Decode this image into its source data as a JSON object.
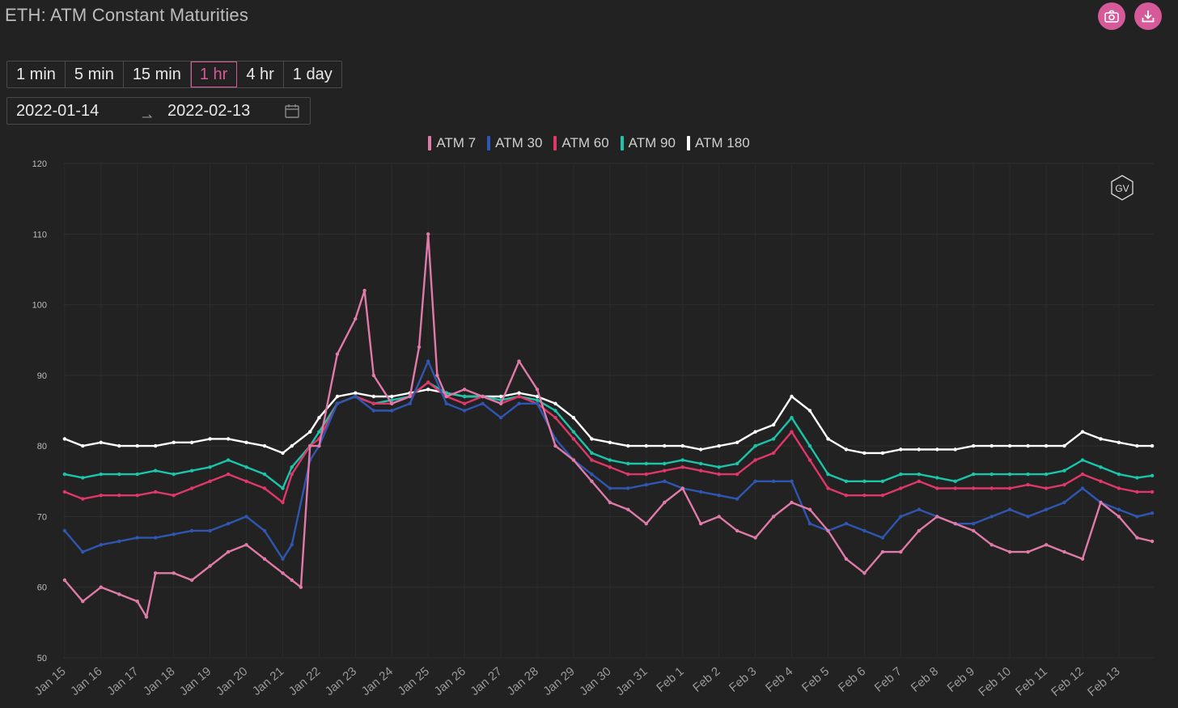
{
  "header": {
    "title": "ETH: ATM Constant Maturities",
    "buttons": [
      {
        "name": "screenshot",
        "icon": "camera-icon"
      },
      {
        "name": "download",
        "icon": "download-icon"
      }
    ],
    "accent": "#d65a9a"
  },
  "controls": {
    "timeframes": [
      "1 min",
      "5 min",
      "15 min",
      "1 hr",
      "4 hr",
      "1 day"
    ],
    "active_timeframe": "1 hr",
    "date_start": "2022-01-14",
    "date_end": "2022-02-13",
    "calendar_icon": "calendar-icon"
  },
  "watermark": "GV",
  "chart_data": {
    "type": "line",
    "title": "",
    "xlabel": "",
    "ylabel": "",
    "ylim": [
      50,
      120
    ],
    "yticks": [
      50,
      60,
      70,
      80,
      90,
      100,
      110,
      120
    ],
    "xlim": [
      "2022-01-14T23:00",
      "2022-02-13T23:00"
    ],
    "xtick_labels": [
      "Jan 15",
      "Jan 16",
      "Jan 17",
      "Jan 18",
      "Jan 19",
      "Jan 20",
      "Jan 21",
      "Jan 22",
      "Jan 23",
      "Jan 24",
      "Jan 25",
      "Jan 26",
      "Jan 27",
      "Jan 28",
      "Jan 29",
      "Jan 30",
      "Jan 31",
      "Feb 1",
      "Feb 2",
      "Feb 3",
      "Feb 4",
      "Feb 5",
      "Feb 6",
      "Feb 7",
      "Feb 8",
      "Feb 9",
      "Feb 10",
      "Feb 11",
      "Feb 12",
      "Feb 13"
    ],
    "grid": true,
    "legend_position": "top-center",
    "series": [
      {
        "name": "ATM 7",
        "color": "#e07aa8",
        "x": [
          "2022-01-15T00:00",
          "2022-01-15T12:00",
          "2022-01-16T00:00",
          "2022-01-16T12:00",
          "2022-01-17T00:00",
          "2022-01-17T06:00",
          "2022-01-17T12:00",
          "2022-01-18T00:00",
          "2022-01-18T12:00",
          "2022-01-19T00:00",
          "2022-01-19T12:00",
          "2022-01-20T00:00",
          "2022-01-20T12:00",
          "2022-01-21T00:00",
          "2022-01-21T06:00",
          "2022-01-21T12:00",
          "2022-01-21T18:00",
          "2022-01-22T00:00",
          "2022-01-22T12:00",
          "2022-01-23T00:00",
          "2022-01-23T06:00",
          "2022-01-23T12:00",
          "2022-01-24T00:00",
          "2022-01-24T12:00",
          "2022-01-24T18:00",
          "2022-01-25T00:00",
          "2022-01-25T06:00",
          "2022-01-25T12:00",
          "2022-01-26T00:00",
          "2022-01-26T12:00",
          "2022-01-27T00:00",
          "2022-01-27T12:00",
          "2022-01-28T00:00",
          "2022-01-28T12:00",
          "2022-01-29T00:00",
          "2022-01-29T12:00",
          "2022-01-30T00:00",
          "2022-01-30T12:00",
          "2022-01-31T00:00",
          "2022-01-31T12:00",
          "2022-02-01T00:00",
          "2022-02-01T12:00",
          "2022-02-02T00:00",
          "2022-02-02T12:00",
          "2022-02-03T00:00",
          "2022-02-03T12:00",
          "2022-02-04T00:00",
          "2022-02-04T12:00",
          "2022-02-05T00:00",
          "2022-02-05T12:00",
          "2022-02-06T00:00",
          "2022-02-06T12:00",
          "2022-02-07T00:00",
          "2022-02-07T12:00",
          "2022-02-08T00:00",
          "2022-02-08T12:00",
          "2022-02-09T00:00",
          "2022-02-09T12:00",
          "2022-02-10T00:00",
          "2022-02-10T12:00",
          "2022-02-11T00:00",
          "2022-02-11T12:00",
          "2022-02-12T00:00",
          "2022-02-12T12:00",
          "2022-02-13T00:00",
          "2022-02-13T12:00",
          "2022-02-13T22:00"
        ],
        "y": [
          61,
          58,
          60,
          59,
          58,
          55.8,
          62,
          62,
          61,
          63,
          65,
          66,
          64,
          62,
          61,
          60,
          80,
          80,
          93,
          98,
          102,
          90,
          86,
          87,
          94,
          110,
          90,
          87,
          88,
          87,
          86,
          92,
          88,
          80,
          78,
          75,
          72,
          71,
          69,
          72,
          74,
          69,
          70,
          68,
          67,
          70,
          72,
          71,
          68,
          64,
          62,
          65,
          65,
          68,
          70,
          69,
          68,
          66,
          65,
          65,
          66,
          65,
          64,
          72,
          70,
          67,
          66.5
        ]
      },
      {
        "name": "ATM 30",
        "color": "#2f56b0",
        "x": [
          "2022-01-15T00:00",
          "2022-01-15T12:00",
          "2022-01-16T00:00",
          "2022-01-16T12:00",
          "2022-01-17T00:00",
          "2022-01-17T12:00",
          "2022-01-18T00:00",
          "2022-01-18T12:00",
          "2022-01-19T00:00",
          "2022-01-19T12:00",
          "2022-01-20T00:00",
          "2022-01-20T12:00",
          "2022-01-21T00:00",
          "2022-01-21T06:00",
          "2022-01-21T18:00",
          "2022-01-22T00:00",
          "2022-01-22T12:00",
          "2022-01-23T00:00",
          "2022-01-23T12:00",
          "2022-01-24T00:00",
          "2022-01-24T12:00",
          "2022-01-25T00:00",
          "2022-01-25T12:00",
          "2022-01-26T00:00",
          "2022-01-26T12:00",
          "2022-01-27T00:00",
          "2022-01-27T12:00",
          "2022-01-28T00:00",
          "2022-01-28T12:00",
          "2022-01-29T00:00",
          "2022-01-29T12:00",
          "2022-01-30T00:00",
          "2022-01-30T12:00",
          "2022-01-31T00:00",
          "2022-01-31T12:00",
          "2022-02-01T00:00",
          "2022-02-01T12:00",
          "2022-02-02T00:00",
          "2022-02-02T12:00",
          "2022-02-03T00:00",
          "2022-02-03T12:00",
          "2022-02-04T00:00",
          "2022-02-04T12:00",
          "2022-02-05T00:00",
          "2022-02-05T12:00",
          "2022-02-06T00:00",
          "2022-02-06T12:00",
          "2022-02-07T00:00",
          "2022-02-07T12:00",
          "2022-02-08T00:00",
          "2022-02-08T12:00",
          "2022-02-09T00:00",
          "2022-02-09T12:00",
          "2022-02-10T00:00",
          "2022-02-10T12:00",
          "2022-02-11T00:00",
          "2022-02-11T12:00",
          "2022-02-12T00:00",
          "2022-02-12T12:00",
          "2022-02-13T00:00",
          "2022-02-13T12:00",
          "2022-02-13T22:00"
        ],
        "y": [
          68,
          65,
          66,
          66.5,
          67,
          67,
          67.5,
          68,
          68,
          69,
          70,
          68,
          64,
          66,
          78,
          80,
          86,
          87,
          85,
          85,
          86,
          92,
          86,
          85,
          86,
          84,
          86,
          86,
          81,
          78,
          76,
          74,
          74,
          74.5,
          75,
          74,
          73.5,
          73,
          72.5,
          75,
          75,
          75,
          69,
          68,
          69,
          68,
          67,
          70,
          71,
          70,
          69,
          69,
          70,
          71,
          70,
          71,
          72,
          74,
          72,
          71,
          70,
          70.5
        ]
      },
      {
        "name": "ATM 60",
        "color": "#e0376a",
        "x": [
          "2022-01-15T00:00",
          "2022-01-15T12:00",
          "2022-01-16T00:00",
          "2022-01-16T12:00",
          "2022-01-17T00:00",
          "2022-01-17T12:00",
          "2022-01-18T00:00",
          "2022-01-18T12:00",
          "2022-01-19T00:00",
          "2022-01-19T12:00",
          "2022-01-20T00:00",
          "2022-01-20T12:00",
          "2022-01-21T00:00",
          "2022-01-21T06:00",
          "2022-01-21T18:00",
          "2022-01-22T00:00",
          "2022-01-22T12:00",
          "2022-01-23T00:00",
          "2022-01-23T12:00",
          "2022-01-24T00:00",
          "2022-01-24T12:00",
          "2022-01-25T00:00",
          "2022-01-25T12:00",
          "2022-01-26T00:00",
          "2022-01-26T12:00",
          "2022-01-27T00:00",
          "2022-01-27T12:00",
          "2022-01-28T00:00",
          "2022-01-28T12:00",
          "2022-01-29T00:00",
          "2022-01-29T12:00",
          "2022-01-30T00:00",
          "2022-01-30T12:00",
          "2022-01-31T00:00",
          "2022-01-31T12:00",
          "2022-02-01T00:00",
          "2022-02-01T12:00",
          "2022-02-02T00:00",
          "2022-02-02T12:00",
          "2022-02-03T00:00",
          "2022-02-03T12:00",
          "2022-02-04T00:00",
          "2022-02-04T12:00",
          "2022-02-05T00:00",
          "2022-02-05T12:00",
          "2022-02-06T00:00",
          "2022-02-06T12:00",
          "2022-02-07T00:00",
          "2022-02-07T12:00",
          "2022-02-08T00:00",
          "2022-02-08T12:00",
          "2022-02-09T00:00",
          "2022-02-09T12:00",
          "2022-02-10T00:00",
          "2022-02-10T12:00",
          "2022-02-11T00:00",
          "2022-02-11T12:00",
          "2022-02-12T00:00",
          "2022-02-12T12:00",
          "2022-02-13T00:00",
          "2022-02-13T12:00",
          "2022-02-13T22:00"
        ],
        "y": [
          73.5,
          72.5,
          73,
          73,
          73,
          73.5,
          73,
          74,
          75,
          76,
          75,
          74,
          72,
          76,
          80,
          81,
          86,
          87,
          86,
          86,
          87,
          89,
          87,
          86,
          87,
          86,
          87,
          86,
          84,
          81,
          78,
          77,
          76,
          76,
          76.5,
          77,
          76.5,
          76,
          76,
          78,
          79,
          82,
          78,
          74,
          73,
          73,
          73,
          74,
          75,
          74,
          74,
          74,
          74,
          74,
          74.5,
          74,
          74.5,
          76,
          75,
          74,
          73.5,
          73.5
        ]
      },
      {
        "name": "ATM 90",
        "color": "#1cc4aa",
        "x": [
          "2022-01-15T00:00",
          "2022-01-15T12:00",
          "2022-01-16T00:00",
          "2022-01-16T12:00",
          "2022-01-17T00:00",
          "2022-01-17T12:00",
          "2022-01-18T00:00",
          "2022-01-18T12:00",
          "2022-01-19T00:00",
          "2022-01-19T12:00",
          "2022-01-20T00:00",
          "2022-01-20T12:00",
          "2022-01-21T00:00",
          "2022-01-21T06:00",
          "2022-01-21T18:00",
          "2022-01-22T00:00",
          "2022-01-22T12:00",
          "2022-01-23T00:00",
          "2022-01-23T12:00",
          "2022-01-24T00:00",
          "2022-01-24T12:00",
          "2022-01-25T00:00",
          "2022-01-25T12:00",
          "2022-01-26T00:00",
          "2022-01-26T12:00",
          "2022-01-27T00:00",
          "2022-01-27T12:00",
          "2022-01-28T00:00",
          "2022-01-28T12:00",
          "2022-01-29T00:00",
          "2022-01-29T12:00",
          "2022-01-30T00:00",
          "2022-01-30T12:00",
          "2022-01-31T00:00",
          "2022-01-31T12:00",
          "2022-02-01T00:00",
          "2022-02-01T12:00",
          "2022-02-02T00:00",
          "2022-02-02T12:00",
          "2022-02-03T00:00",
          "2022-02-03T12:00",
          "2022-02-04T00:00",
          "2022-02-04T12:00",
          "2022-02-05T00:00",
          "2022-02-05T12:00",
          "2022-02-06T00:00",
          "2022-02-06T12:00",
          "2022-02-07T00:00",
          "2022-02-07T12:00",
          "2022-02-08T00:00",
          "2022-02-08T12:00",
          "2022-02-09T00:00",
          "2022-02-09T12:00",
          "2022-02-10T00:00",
          "2022-02-10T12:00",
          "2022-02-11T00:00",
          "2022-02-11T12:00",
          "2022-02-12T00:00",
          "2022-02-12T12:00",
          "2022-02-13T00:00",
          "2022-02-13T12:00",
          "2022-02-13T22:00"
        ],
        "y": [
          76,
          75.5,
          76,
          76,
          76,
          76.5,
          76,
          76.5,
          77,
          78,
          77,
          76,
          74,
          77,
          80,
          82,
          86,
          87,
          86,
          86.5,
          87,
          89,
          87.5,
          87,
          87,
          86.5,
          87,
          86.5,
          85,
          82,
          79,
          78,
          77.5,
          77.5,
          77.5,
          78,
          77.5,
          77,
          77.5,
          80,
          81,
          84,
          80,
          76,
          75,
          75,
          75,
          76,
          76,
          75.5,
          75,
          76,
          76,
          76,
          76,
          76,
          76.5,
          78,
          77,
          76,
          75.5,
          75.8
        ]
      },
      {
        "name": "ATM 180",
        "color": "#ffffff",
        "x": [
          "2022-01-15T00:00",
          "2022-01-15T12:00",
          "2022-01-16T00:00",
          "2022-01-16T12:00",
          "2022-01-17T00:00",
          "2022-01-17T12:00",
          "2022-01-18T00:00",
          "2022-01-18T12:00",
          "2022-01-19T00:00",
          "2022-01-19T12:00",
          "2022-01-20T00:00",
          "2022-01-20T12:00",
          "2022-01-21T00:00",
          "2022-01-21T06:00",
          "2022-01-21T18:00",
          "2022-01-22T00:00",
          "2022-01-22T12:00",
          "2022-01-23T00:00",
          "2022-01-23T12:00",
          "2022-01-24T00:00",
          "2022-01-24T12:00",
          "2022-01-25T00:00",
          "2022-01-25T12:00",
          "2022-01-26T00:00",
          "2022-01-26T12:00",
          "2022-01-27T00:00",
          "2022-01-27T12:00",
          "2022-01-28T00:00",
          "2022-01-28T12:00",
          "2022-01-29T00:00",
          "2022-01-29T12:00",
          "2022-01-30T00:00",
          "2022-01-30T12:00",
          "2022-01-31T00:00",
          "2022-01-31T12:00",
          "2022-02-01T00:00",
          "2022-02-01T12:00",
          "2022-02-02T00:00",
          "2022-02-02T12:00",
          "2022-02-03T00:00",
          "2022-02-03T12:00",
          "2022-02-04T00:00",
          "2022-02-04T12:00",
          "2022-02-05T00:00",
          "2022-02-05T12:00",
          "2022-02-06T00:00",
          "2022-02-06T12:00",
          "2022-02-07T00:00",
          "2022-02-07T12:00",
          "2022-02-08T00:00",
          "2022-02-08T12:00",
          "2022-02-09T00:00",
          "2022-02-09T12:00",
          "2022-02-10T00:00",
          "2022-02-10T12:00",
          "2022-02-11T00:00",
          "2022-02-11T12:00",
          "2022-02-12T00:00",
          "2022-02-12T12:00",
          "2022-02-13T00:00",
          "2022-02-13T12:00",
          "2022-02-13T22:00"
        ],
        "y": [
          81,
          80,
          80.5,
          80,
          80,
          80,
          80.5,
          80.5,
          81,
          81,
          80.5,
          80,
          79,
          80,
          82,
          84,
          87,
          87.5,
          87,
          87,
          87.5,
          88,
          87.5,
          87,
          87,
          87,
          87.5,
          87,
          86,
          84,
          81,
          80.5,
          80,
          80,
          80,
          80,
          79.5,
          80,
          80.5,
          82,
          83,
          87,
          85,
          81,
          79.5,
          79,
          79,
          79.5,
          79.5,
          79.5,
          79.5,
          80,
          80,
          80,
          80,
          80,
          80,
          82,
          81,
          80.5,
          80,
          80
        ]
      }
    ]
  }
}
